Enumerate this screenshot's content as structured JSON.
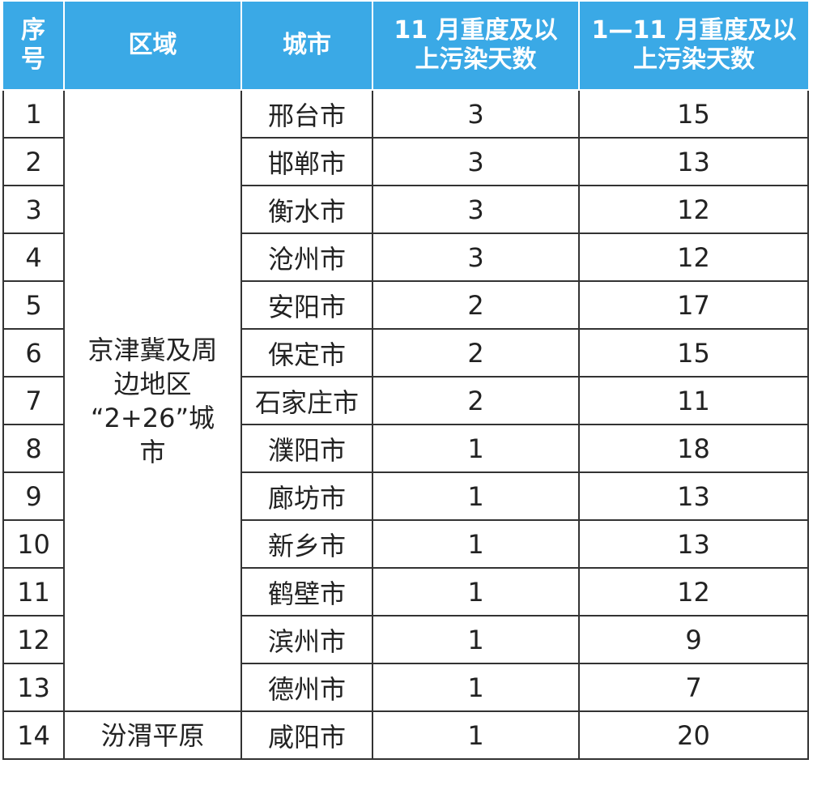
{
  "table": {
    "headers": {
      "index": [
        "序",
        "号"
      ],
      "region": "区域",
      "city": "城市",
      "nov": [
        "11 月重度及以",
        "上污染天数"
      ],
      "jan_nov": [
        "1—11 月重度及以",
        "上污染天数"
      ]
    },
    "region_groups": [
      {
        "label_lines": [
          "京津冀及周",
          "边地区",
          "“2+26”城",
          "市"
        ],
        "rowspan": 13
      },
      {
        "label_lines": [
          "汾渭平原"
        ],
        "rowspan": 1
      }
    ],
    "rows": [
      {
        "index": "1",
        "city": "邢台市",
        "nov": "3",
        "jan_nov": "15"
      },
      {
        "index": "2",
        "city": "邯郸市",
        "nov": "3",
        "jan_nov": "13"
      },
      {
        "index": "3",
        "city": "衡水市",
        "nov": "3",
        "jan_nov": "12"
      },
      {
        "index": "4",
        "city": "沧州市",
        "nov": "3",
        "jan_nov": "12"
      },
      {
        "index": "5",
        "city": "安阳市",
        "nov": "2",
        "jan_nov": "17"
      },
      {
        "index": "6",
        "city": "保定市",
        "nov": "2",
        "jan_nov": "15"
      },
      {
        "index": "7",
        "city": "石家庄市",
        "nov": "2",
        "jan_nov": "11"
      },
      {
        "index": "8",
        "city": "濮阳市",
        "nov": "1",
        "jan_nov": "18"
      },
      {
        "index": "9",
        "city": "廊坊市",
        "nov": "1",
        "jan_nov": "13"
      },
      {
        "index": "10",
        "city": "新乡市",
        "nov": "1",
        "jan_nov": "13"
      },
      {
        "index": "11",
        "city": "鹤壁市",
        "nov": "1",
        "jan_nov": "12"
      },
      {
        "index": "12",
        "city": "滨州市",
        "nov": "1",
        "jan_nov": "9"
      },
      {
        "index": "13",
        "city": "德州市",
        "nov": "1",
        "jan_nov": "7"
      },
      {
        "index": "14",
        "city": "咸阳市",
        "nov": "1",
        "jan_nov": "20"
      }
    ]
  },
  "colors": {
    "header_bg": "#3aa9e6",
    "header_text": "#ffffff",
    "border": "#333333",
    "body_text": "#222222"
  }
}
